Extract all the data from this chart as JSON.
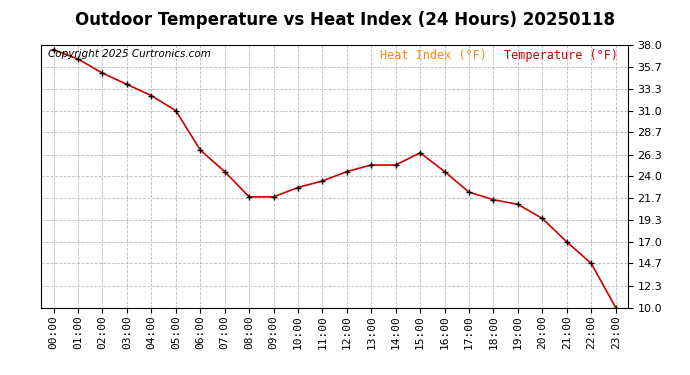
{
  "title": "Outdoor Temperature vs Heat Index (24 Hours) 20250118",
  "copyright_text": "Copyright 2025 Curtronics.com",
  "legend_heat_index": "Heat Index (°F)",
  "legend_temperature": "Temperature (°F)",
  "hours": [
    "00:00",
    "01:00",
    "02:00",
    "03:00",
    "04:00",
    "05:00",
    "06:00",
    "07:00",
    "08:00",
    "09:00",
    "10:00",
    "11:00",
    "12:00",
    "13:00",
    "14:00",
    "15:00",
    "16:00",
    "17:00",
    "18:00",
    "19:00",
    "20:00",
    "21:00",
    "22:00",
    "23:00"
  ],
  "temperature": [
    37.5,
    36.5,
    35.0,
    33.8,
    32.6,
    31.0,
    26.8,
    24.5,
    21.8,
    21.8,
    22.8,
    23.5,
    24.5,
    25.2,
    25.2,
    26.5,
    24.5,
    22.3,
    21.5,
    21.0,
    19.5,
    17.0,
    14.7,
    10.0
  ],
  "heat_index": [
    37.5,
    36.5,
    35.0,
    33.8,
    32.6,
    31.0,
    26.8,
    24.5,
    21.8,
    21.8,
    22.8,
    23.5,
    24.5,
    25.2,
    25.2,
    26.5,
    24.5,
    22.3,
    21.5,
    21.0,
    19.5,
    17.0,
    14.7,
    10.0
  ],
  "ylim_min": 10.0,
  "ylim_max": 38.0,
  "yticks": [
    10.0,
    12.3,
    14.7,
    17.0,
    19.3,
    21.7,
    24.0,
    26.3,
    28.7,
    31.0,
    33.3,
    35.7,
    38.0
  ],
  "line_color": "#cc0000",
  "marker_color": "#000000",
  "bg_color": "#ffffff",
  "grid_color": "#bbbbbb",
  "title_fontsize": 12,
  "copyright_fontsize": 7.5,
  "legend_fontsize": 8.5,
  "tick_fontsize": 8,
  "legend_heat_color": "#ff8800",
  "legend_temp_color": "#cc0000"
}
